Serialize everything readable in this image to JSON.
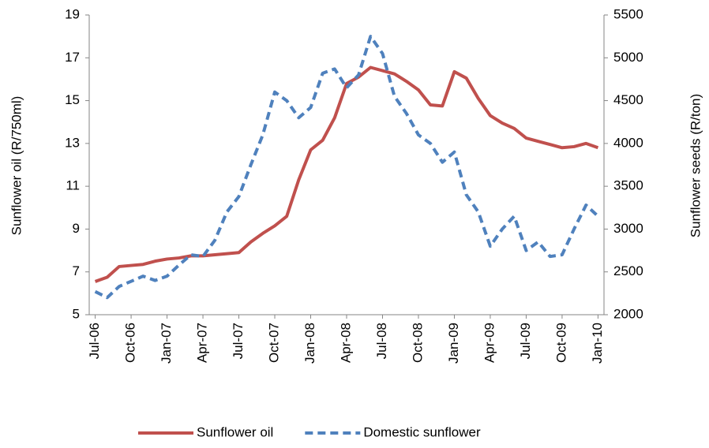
{
  "chart_data": {
    "type": "line",
    "categories": [
      "Jul-06",
      null,
      null,
      "Oct-06",
      null,
      null,
      "Jan-07",
      null,
      null,
      "Apr-07",
      null,
      null,
      "Jul-07",
      null,
      null,
      "Oct-07",
      null,
      null,
      "Jan-08",
      null,
      null,
      "Apr-08",
      null,
      null,
      "Jul-08",
      null,
      null,
      "Oct-08",
      null,
      null,
      "Jan-09",
      null,
      null,
      "Apr-09",
      null,
      null,
      "Jul-09",
      null,
      null,
      "Oct-09",
      null,
      null,
      "Jan-10"
    ],
    "series": [
      {
        "name": "Sunflower oil",
        "color": "#c0504d",
        "style": "solid",
        "values": [
          6.55,
          6.75,
          7.25,
          7.3,
          7.35,
          7.5,
          7.6,
          7.65,
          7.75,
          7.75,
          7.8,
          7.85,
          7.9,
          8.4,
          8.8,
          9.15,
          9.6,
          11.3,
          12.7,
          13.15,
          14.2,
          15.8,
          16.1,
          16.55,
          16.4,
          16.25,
          15.9,
          15.5,
          14.8,
          14.75,
          16.35,
          16.05,
          15.1,
          14.3,
          13.95,
          13.7,
          13.25,
          13.1,
          12.95,
          12.8,
          12.85,
          13.0,
          12.8
        ]
      },
      {
        "name": "Domestic sunflower",
        "color": "#4f81bd",
        "style": "dashed",
        "axis": "y2",
        "values": [
          2270,
          2200,
          2330,
          2390,
          2450,
          2400,
          2450,
          2580,
          2700,
          2680,
          2870,
          3200,
          3380,
          3750,
          4100,
          4600,
          4500,
          4300,
          4420,
          4820,
          4870,
          4650,
          4800,
          5250,
          5050,
          4550,
          4350,
          4100,
          4000,
          3780,
          3900,
          3400,
          3200,
          2800,
          3000,
          3150,
          2750,
          2850,
          2680,
          2700,
          3000,
          3280,
          3150
        ]
      }
    ],
    "y_label": "Sunflower oil (R/750ml)",
    "y2_label": "Sunflower seeds (R/ton)",
    "ylim": [
      5,
      19
    ],
    "yticks": [
      5,
      7,
      9,
      11,
      13,
      15,
      17,
      19
    ],
    "y2lim": [
      2000,
      5500
    ],
    "y2ticks": [
      2000,
      2500,
      3000,
      3500,
      4000,
      4500,
      5000,
      5500
    ],
    "grid": false,
    "legend": "bottom"
  }
}
